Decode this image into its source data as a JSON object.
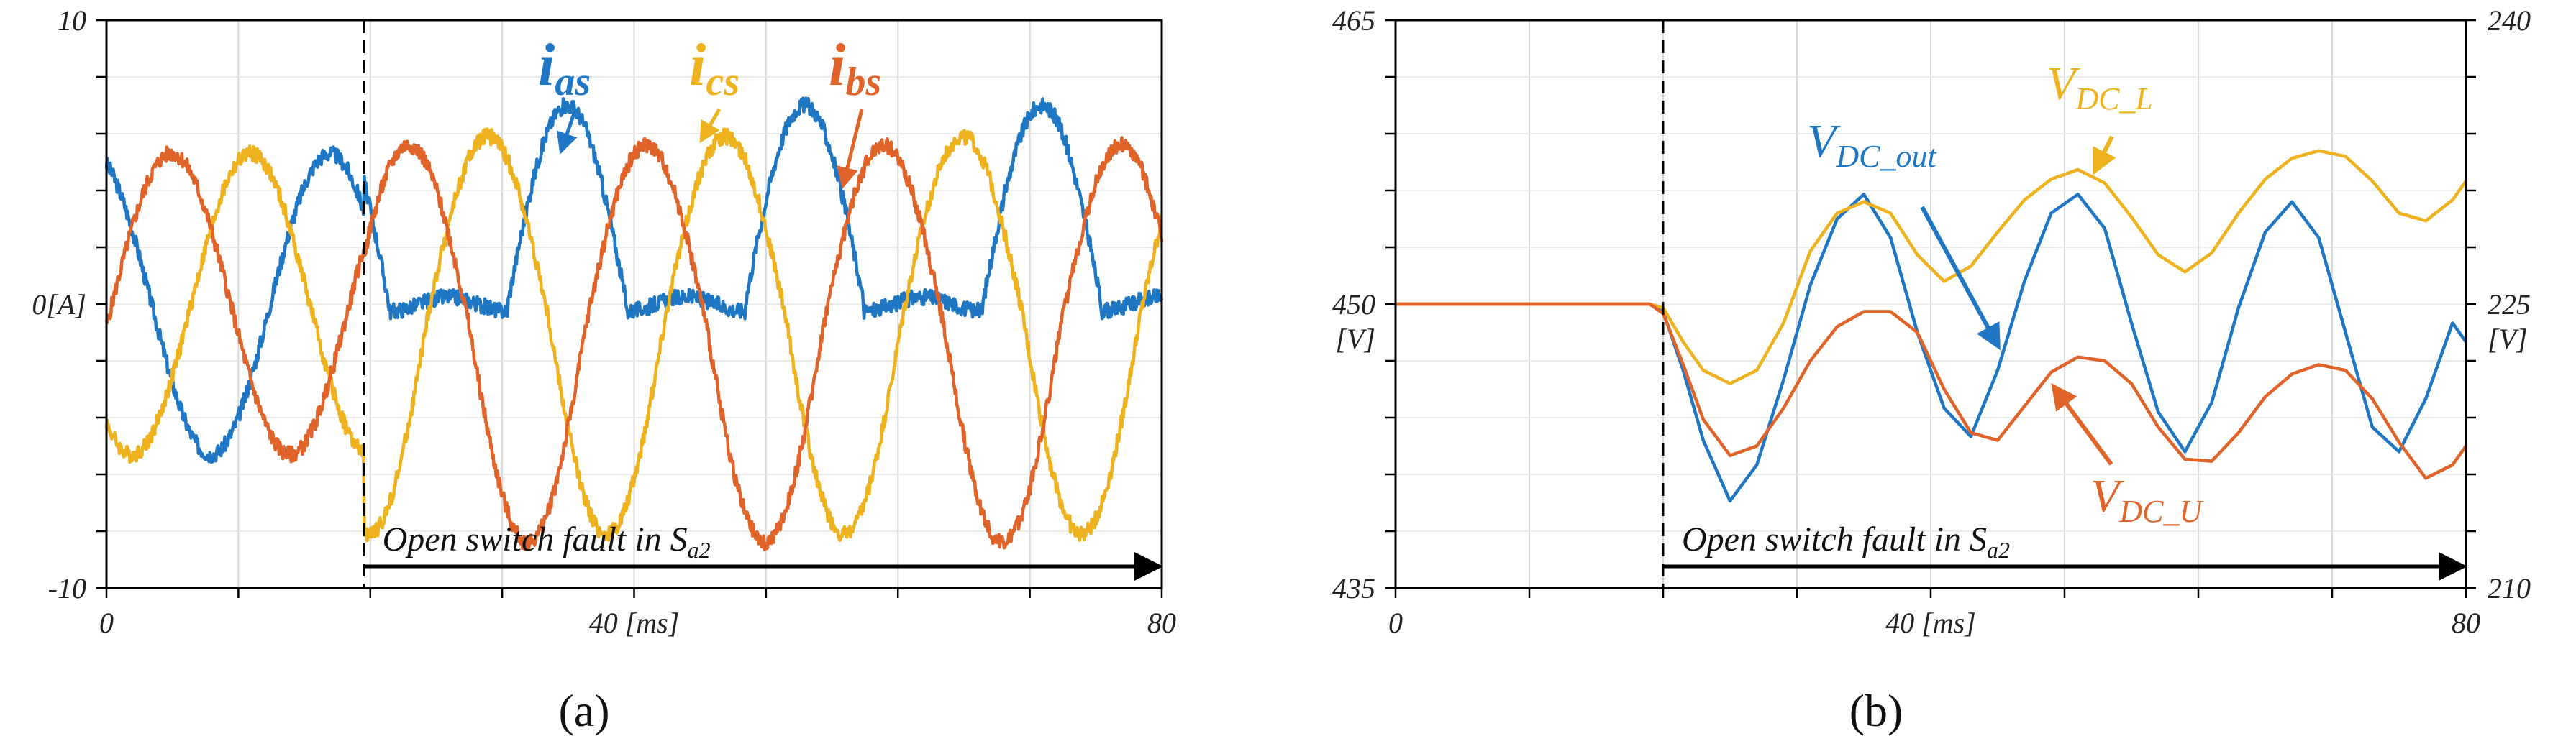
{
  "chart_data": [
    {
      "type": "line",
      "panel_label": "(a)",
      "xlim": [
        0,
        80
      ],
      "ylim": [
        -10,
        10
      ],
      "x_ticks": [
        {
          "value": 0,
          "label": "0"
        },
        {
          "value": 40,
          "label": "40 [ms]"
        },
        {
          "value": 80,
          "label": "80"
        }
      ],
      "y_ticks": [
        {
          "value": 10,
          "label": "10"
        },
        {
          "value": 0,
          "label": "0[A]"
        },
        {
          "value": -10,
          "label": "-10"
        }
      ],
      "fault_time": 19.5,
      "fault_annotation": {
        "text": "Open switch fault in S",
        "sub": "a2"
      },
      "grid": true,
      "series": [
        {
          "name": "i",
          "sub": "as",
          "color": "#1f77c4"
        },
        {
          "name": "i",
          "sub": "cs",
          "color": "#edb21e"
        },
        {
          "name": "i",
          "sub": "bs",
          "color": "#e0632a"
        }
      ]
    },
    {
      "type": "line",
      "panel_label": "(b)",
      "xlim": [
        0,
        80
      ],
      "ylim": [
        435,
        465
      ],
      "ylim_right": [
        210,
        240
      ],
      "x_ticks": [
        {
          "value": 0,
          "label": "0"
        },
        {
          "value": 40,
          "label": "40 [ms]"
        },
        {
          "value": 80,
          "label": "80"
        }
      ],
      "y_ticks": [
        {
          "value": 465,
          "label": "465"
        },
        {
          "value": 450,
          "label": "450"
        },
        {
          "value": 435,
          "label": "435"
        }
      ],
      "y_unit": "[V]",
      "y_ticks_right": [
        {
          "value": 240,
          "label": "240"
        },
        {
          "value": 225,
          "label": "225"
        },
        {
          "value": 210,
          "label": "210"
        }
      ],
      "y_unit_right": "[V]",
      "fault_time": 20,
      "fault_annotation": {
        "text": "Open switch fault in S",
        "sub": "a2"
      },
      "grid": true,
      "series": [
        {
          "name": "V",
          "sub": "DC_out",
          "color": "#1f77c4",
          "axis": "left",
          "x": [
            0,
            19,
            20,
            21.5,
            23,
            25,
            27,
            29,
            31,
            33,
            35,
            37,
            39,
            41,
            43,
            45,
            47,
            49,
            51,
            53,
            55,
            57,
            59,
            61,
            63,
            65,
            67,
            69,
            71,
            73,
            75,
            77,
            79,
            80
          ],
          "y": [
            450,
            450,
            449.6,
            446.5,
            442.8,
            439.6,
            441.5,
            446,
            451,
            454.5,
            455.8,
            453.5,
            448.5,
            444.5,
            443,
            446.5,
            451.2,
            454.8,
            455.8,
            454,
            449,
            444.3,
            442.2,
            444.8,
            449.8,
            453.8,
            455.4,
            453.5,
            448.5,
            443.5,
            442.2,
            445,
            449,
            448
          ]
        },
        {
          "name": "V",
          "sub": "DC_L",
          "color": "#edb21e",
          "axis": "right",
          "x": [
            0,
            19,
            20,
            21.5,
            23,
            25,
            27,
            29,
            31,
            33,
            35,
            37,
            39,
            41,
            43,
            45,
            47,
            49,
            51,
            53,
            55,
            57,
            59,
            61,
            63,
            65,
            67,
            69,
            71,
            73,
            75,
            77,
            79,
            80
          ],
          "y": [
            225,
            225,
            224.8,
            223,
            221.5,
            220.8,
            221.5,
            224,
            227.8,
            229.8,
            230.4,
            229.8,
            227.6,
            226.2,
            227,
            228.8,
            230.5,
            231.6,
            232.1,
            231.4,
            229.6,
            227.6,
            226.7,
            227.7,
            229.8,
            231.6,
            232.7,
            233.1,
            232.8,
            231.5,
            229.8,
            229.4,
            230.5,
            231.5
          ]
        },
        {
          "name": "V",
          "sub": "DC_U",
          "color": "#e0632a",
          "axis": "right",
          "x": [
            0,
            19,
            20,
            21.5,
            23,
            25,
            27,
            29,
            31,
            33,
            35,
            37,
            39,
            41,
            43,
            45,
            47,
            49,
            51,
            53,
            55,
            57,
            59,
            61,
            63,
            65,
            67,
            69,
            71,
            73,
            75,
            77,
            79,
            80
          ],
          "y": [
            225,
            225,
            224.5,
            221.8,
            218.9,
            217,
            217.5,
            219.5,
            222,
            223.8,
            224.6,
            224.6,
            223.5,
            220.5,
            218.2,
            217.8,
            219.6,
            221.4,
            222.2,
            222,
            220.8,
            218.5,
            216.8,
            216.7,
            218.2,
            220.1,
            221.3,
            221.8,
            221.5,
            220,
            217.7,
            215.8,
            216.5,
            217.5
          ]
        }
      ]
    }
  ]
}
